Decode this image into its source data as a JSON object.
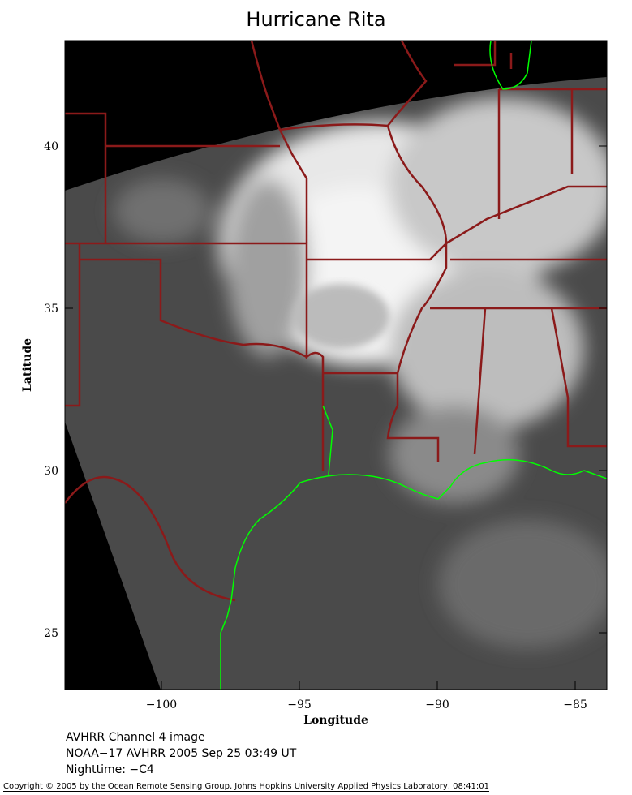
{
  "title": "Hurricane Rita",
  "axes": {
    "xlabel": "Longitude",
    "ylabel": "Latitude",
    "x_ticks": [
      "−100",
      "−95",
      "−90",
      "−85"
    ],
    "y_ticks": [
      "40",
      "35",
      "30",
      "25"
    ],
    "lon_range": [
      -103.5,
      -83.8
    ],
    "lat_range": [
      23.25,
      43.25
    ]
  },
  "captions": {
    "line1": "AVHRR Channel 4 image",
    "line2": "NOAA−17 AVHRR 2005 Sep 25 03:49 UT",
    "line3": "Nighttime: −C4"
  },
  "copyright": "Copyright © 2005 by the Ocean Remote Sensing Group, Johns Hopkins University Applied Physics Laboratory, 08:41:01",
  "colors": {
    "borders": "#8b1a1a",
    "coastline": "#00ff00",
    "no_data": "#000000",
    "ocean_land": "#4a4a4a",
    "clouds": "#ffffff"
  }
}
